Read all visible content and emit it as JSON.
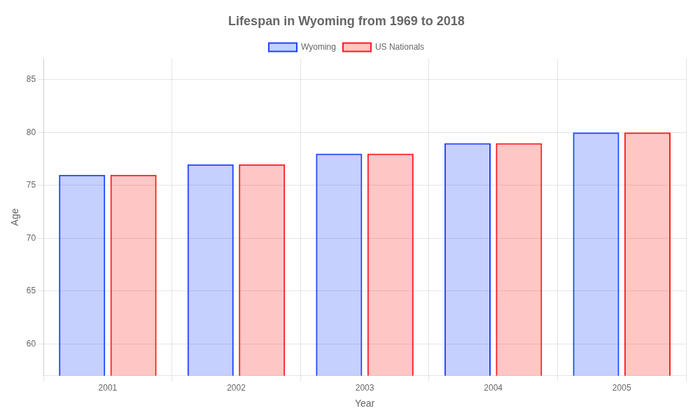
{
  "chart_data": {
    "type": "bar",
    "title": "Lifespan in Wyoming from 1969 to 2018",
    "x_label": "Year",
    "y_label": "Age",
    "categories": [
      "2001",
      "2002",
      "2003",
      "2004",
      "2005"
    ],
    "series": [
      {
        "name": "Wyoming",
        "color": "#1a44ff",
        "values": [
          76,
          77,
          78,
          79,
          80
        ]
      },
      {
        "name": "US Nationals",
        "color": "#ff1a1a",
        "values": [
          76,
          77,
          78,
          79,
          80
        ]
      }
    ],
    "ylim": [
      57,
      87
    ],
    "yticks": [
      60,
      65,
      70,
      75,
      80,
      85
    ],
    "grid": true,
    "legend": "top"
  }
}
